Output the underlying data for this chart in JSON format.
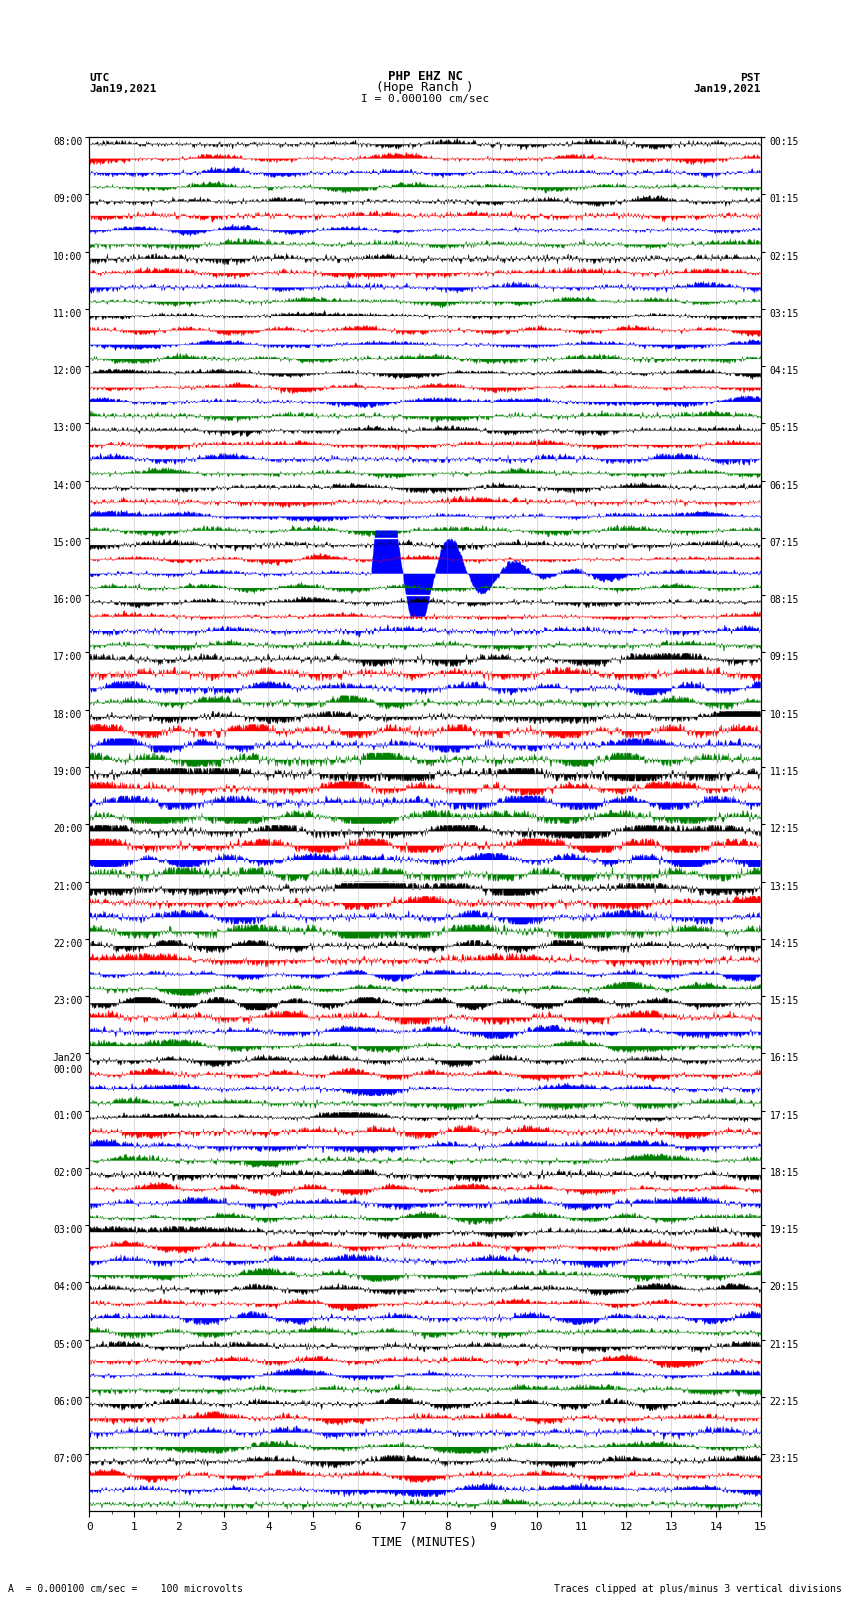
{
  "title_line1": "PHP EHZ NC",
  "title_line2": "(Hope Ranch )",
  "title_line3": "I = 0.000100 cm/sec",
  "left_label_line1": "UTC",
  "left_label_line2": "Jan19,2021",
  "right_label_line1": "PST",
  "right_label_line2": "Jan19,2021",
  "xlabel": "TIME (MINUTES)",
  "bottom_left": "A  = 0.000100 cm/sec =    100 microvolts",
  "bottom_right": "Traces clipped at plus/minus 3 vertical divisions",
  "utc_times": [
    "08:00",
    "09:00",
    "10:00",
    "11:00",
    "12:00",
    "13:00",
    "14:00",
    "15:00",
    "16:00",
    "17:00",
    "18:00",
    "19:00",
    "20:00",
    "21:00",
    "22:00",
    "23:00",
    "Jan20\n00:00",
    "01:00",
    "02:00",
    "03:00",
    "04:00",
    "05:00",
    "06:00",
    "07:00"
  ],
  "pst_times": [
    "00:15",
    "01:15",
    "02:15",
    "03:15",
    "04:15",
    "05:15",
    "06:15",
    "07:15",
    "08:15",
    "09:15",
    "10:15",
    "11:15",
    "12:15",
    "13:15",
    "14:15",
    "15:15",
    "16:15",
    "17:15",
    "18:15",
    "19:15",
    "20:15",
    "21:15",
    "22:15",
    "23:15"
  ],
  "n_rows": 24,
  "traces_per_row": 4,
  "colors": [
    "black",
    "red",
    "blue",
    "green"
  ],
  "fig_width": 8.5,
  "fig_height": 16.13,
  "dpi": 100,
  "xmin": 0,
  "xmax": 15,
  "xticks": [
    0,
    1,
    2,
    3,
    4,
    5,
    6,
    7,
    8,
    9,
    10,
    11,
    12,
    13,
    14,
    15
  ],
  "background_color": "white",
  "vertical_lines_minutes": [
    1,
    2,
    3,
    4,
    5,
    6,
    7,
    8,
    9,
    10,
    11,
    12,
    13,
    14
  ]
}
